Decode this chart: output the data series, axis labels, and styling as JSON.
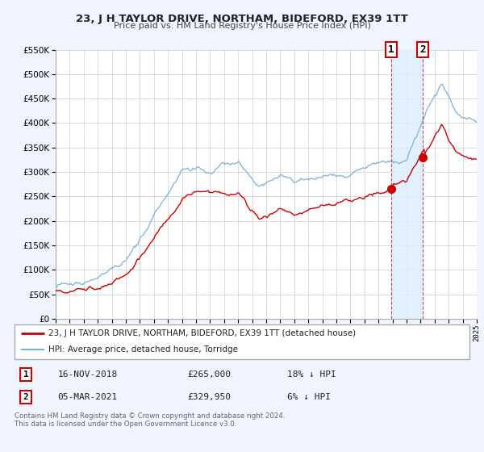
{
  "title": "23, J H TAYLOR DRIVE, NORTHAM, BIDEFORD, EX39 1TT",
  "subtitle": "Price paid vs. HM Land Registry's House Price Index (HPI)",
  "legend_line1": "23, J H TAYLOR DRIVE, NORTHAM, BIDEFORD, EX39 1TT (detached house)",
  "legend_line2": "HPI: Average price, detached house, Torridge",
  "sale1_label": "1",
  "sale1_date": "16-NOV-2018",
  "sale1_price": "£265,000",
  "sale1_hpi": "18% ↓ HPI",
  "sale2_label": "2",
  "sale2_date": "05-MAR-2021",
  "sale2_price": "£329,950",
  "sale2_hpi": "6% ↓ HPI",
  "footnote": "Contains HM Land Registry data © Crown copyright and database right 2024.\nThis data is licensed under the Open Government Licence v3.0.",
  "hpi_color": "#7ab0d4",
  "price_color": "#cc0000",
  "sale1_x": 2018.9,
  "sale1_y": 265000,
  "sale2_x": 2021.17,
  "sale2_y": 329950,
  "vline1_x": 2018.9,
  "vline2_x": 2021.17,
  "ylim": [
    0,
    550000
  ],
  "xlim": [
    1995,
    2025
  ],
  "background_color": "#f0f4ff",
  "plot_bg_color": "#ffffff",
  "shade_color": "#ddeeff",
  "grid_color": "#cccccc"
}
